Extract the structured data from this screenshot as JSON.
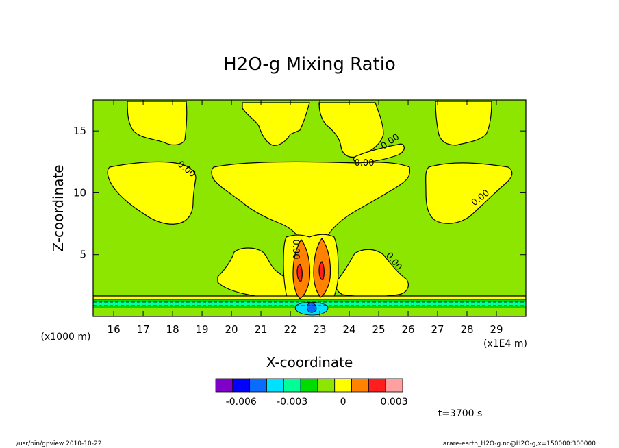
{
  "chart_data": {
    "type": "heatmap",
    "title": "H2O-g Mixing Ratio",
    "xlabel": "X-coordinate",
    "ylabel": "Z-coordinate",
    "x_unit_label": "(x1E4 m)",
    "y_unit_label": "(x1000 m)",
    "xlim": [
      15.3,
      30.0
    ],
    "ylim": [
      0.0,
      17.5
    ],
    "x_ticks": [
      16,
      17,
      18,
      19,
      20,
      21,
      22,
      23,
      24,
      25,
      26,
      27,
      28,
      29
    ],
    "y_ticks": [
      5,
      10,
      15
    ],
    "contour_labels": [
      "0.00",
      "0.00",
      "0.00",
      "0.00",
      "0.00",
      "0.00"
    ],
    "colorbar": {
      "colors": [
        "#7f00c8",
        "#0000ff",
        "#0a6cff",
        "#00e1ff",
        "#00ff96",
        "#00dc00",
        "#8ce600",
        "#ffff00",
        "#ff8200",
        "#ff1e1e",
        "#ffa0a0"
      ],
      "tick_labels": [
        "-0.006",
        "-0.003",
        "0",
        "0.003"
      ],
      "tick_values": [
        -0.006,
        -0.003,
        0,
        0.003
      ],
      "range": [
        -0.0075,
        0.0035
      ]
    },
    "time_label": "t=3700 s",
    "legend": "none",
    "grid": false
  },
  "footer": {
    "left": "/usr/bin/gpview   2010-10-22",
    "right": "arare-earth_H2O-g.nc@H2O-g,x=150000:300000"
  },
  "colors": {
    "background_level": "#8ce600",
    "positive_level": "#ffff00",
    "orange_level": "#ff8200",
    "red_level": "#ff1e1e",
    "low_level_green": "#00dc00",
    "low_level_teal": "#00ff96",
    "low_level_cyan": "#00e1ff",
    "low_level_blue": "#0a6cff"
  }
}
